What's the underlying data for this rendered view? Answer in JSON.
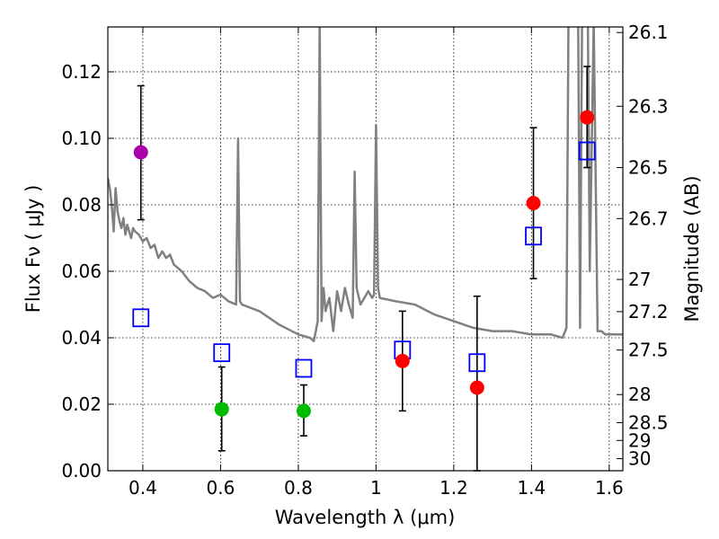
{
  "chart_data": {
    "type": "scatter",
    "xlabel": "Wavelength  λ (μm)",
    "ylabel": "Flux  Fν  ( μJy )",
    "y2label": "Magnitude (AB)",
    "xlim": [
      0.31,
      1.635
    ],
    "ylim": [
      0.0,
      0.1335
    ],
    "grid": true,
    "x_ticks": [
      0.4,
      0.6,
      0.8,
      1.0,
      1.2,
      1.4,
      1.6
    ],
    "x_tick_labels": [
      "0.4",
      "0.6",
      "0.8",
      "1",
      "1.2",
      "1.4",
      "1.6"
    ],
    "y_ticks": [
      0.0,
      0.02,
      0.04,
      0.06,
      0.08,
      0.1,
      0.12
    ],
    "y_tick_labels": [
      "0.00",
      "0.02",
      "0.04",
      "0.06",
      "0.08",
      "0.10",
      "0.12"
    ],
    "mag_ticks": [
      "26.1",
      "26.3",
      "26.5",
      "26.7",
      "27",
      "27.2",
      "27.5",
      "28",
      "28.5",
      "29",
      "30"
    ],
    "colors": {
      "spectrum": "#808080",
      "model": "#0000ff",
      "purple": "#aa00aa",
      "green": "#00bb00",
      "red": "#ff0000"
    },
    "series": [
      {
        "name": "observed",
        "marker": "circle",
        "points": [
          {
            "x": 0.395,
            "y": 0.0958,
            "yerr_lo": 0.0755,
            "yerr_hi": 0.1158,
            "color": "#aa00aa"
          },
          {
            "x": 0.603,
            "y": 0.0185,
            "yerr_lo": 0.006,
            "yerr_hi": 0.0312,
            "color": "#00bb00"
          },
          {
            "x": 0.814,
            "y": 0.018,
            "yerr_lo": 0.0105,
            "yerr_hi": 0.0258,
            "color": "#00bb00"
          },
          {
            "x": 1.068,
            "y": 0.033,
            "yerr_lo": 0.018,
            "yerr_hi": 0.048,
            "color": "#ff0000"
          },
          {
            "x": 1.26,
            "y": 0.025,
            "yerr_lo": 0.0,
            "yerr_hi": 0.0525,
            "color": "#ff0000"
          },
          {
            "x": 1.405,
            "y": 0.0805,
            "yerr_lo": 0.0578,
            "yerr_hi": 0.1032,
            "color": "#ff0000"
          },
          {
            "x": 1.543,
            "y": 0.1063,
            "yerr_lo": 0.0912,
            "yerr_hi": 0.1216,
            "color": "#ff0000"
          }
        ]
      },
      {
        "name": "model",
        "marker": "open-square",
        "points": [
          {
            "x": 0.395,
            "y": 0.046
          },
          {
            "x": 0.603,
            "y": 0.0355
          },
          {
            "x": 0.814,
            "y": 0.0308
          },
          {
            "x": 1.068,
            "y": 0.0363
          },
          {
            "x": 1.26,
            "y": 0.0325
          },
          {
            "x": 1.405,
            "y": 0.0706
          },
          {
            "x": 1.543,
            "y": 0.0962
          }
        ]
      },
      {
        "name": "spectrum",
        "marker": "line",
        "x": [
          0.31,
          0.315,
          0.32,
          0.325,
          0.33,
          0.335,
          0.34,
          0.345,
          0.35,
          0.355,
          0.36,
          0.365,
          0.37,
          0.375,
          0.38,
          0.39,
          0.4,
          0.41,
          0.42,
          0.43,
          0.44,
          0.45,
          0.46,
          0.47,
          0.48,
          0.5,
          0.52,
          0.54,
          0.56,
          0.58,
          0.6,
          0.62,
          0.64,
          0.645,
          0.65,
          0.655,
          0.7,
          0.75,
          0.8,
          0.83,
          0.84,
          0.85,
          0.855,
          0.86,
          0.865,
          0.87,
          0.875,
          0.88,
          0.89,
          0.9,
          0.91,
          0.92,
          0.93,
          0.94,
          0.945,
          0.95,
          0.96,
          0.97,
          0.98,
          0.99,
          0.995,
          1.0,
          1.005,
          1.01,
          1.05,
          1.1,
          1.15,
          1.2,
          1.25,
          1.3,
          1.35,
          1.4,
          1.45,
          1.48,
          1.49,
          1.495,
          1.5,
          1.51,
          1.52,
          1.525,
          1.53,
          1.535,
          1.54,
          1.545,
          1.55,
          1.56,
          1.57,
          1.58,
          1.59,
          1.6,
          1.635
        ],
        "y": [
          0.088,
          0.085,
          0.08,
          0.072,
          0.085,
          0.078,
          0.075,
          0.073,
          0.076,
          0.071,
          0.074,
          0.072,
          0.07,
          0.073,
          0.072,
          0.071,
          0.069,
          0.07,
          0.067,
          0.068,
          0.064,
          0.066,
          0.064,
          0.065,
          0.062,
          0.06,
          0.057,
          0.055,
          0.054,
          0.052,
          0.053,
          0.051,
          0.05,
          0.1,
          0.051,
          0.05,
          0.048,
          0.044,
          0.041,
          0.04,
          0.039,
          0.045,
          0.135,
          0.045,
          0.055,
          0.048,
          0.05,
          0.052,
          0.042,
          0.054,
          0.048,
          0.055,
          0.05,
          0.046,
          0.09,
          0.055,
          0.05,
          0.052,
          0.054,
          0.052,
          0.053,
          0.104,
          0.055,
          0.052,
          0.051,
          0.05,
          0.047,
          0.045,
          0.043,
          0.042,
          0.042,
          0.041,
          0.041,
          0.04,
          0.043,
          0.135,
          0.135,
          0.135,
          0.135,
          0.043,
          0.135,
          0.135,
          0.135,
          0.135,
          0.06,
          0.135,
          0.042,
          0.042,
          0.041,
          0.041,
          0.041
        ]
      }
    ]
  }
}
